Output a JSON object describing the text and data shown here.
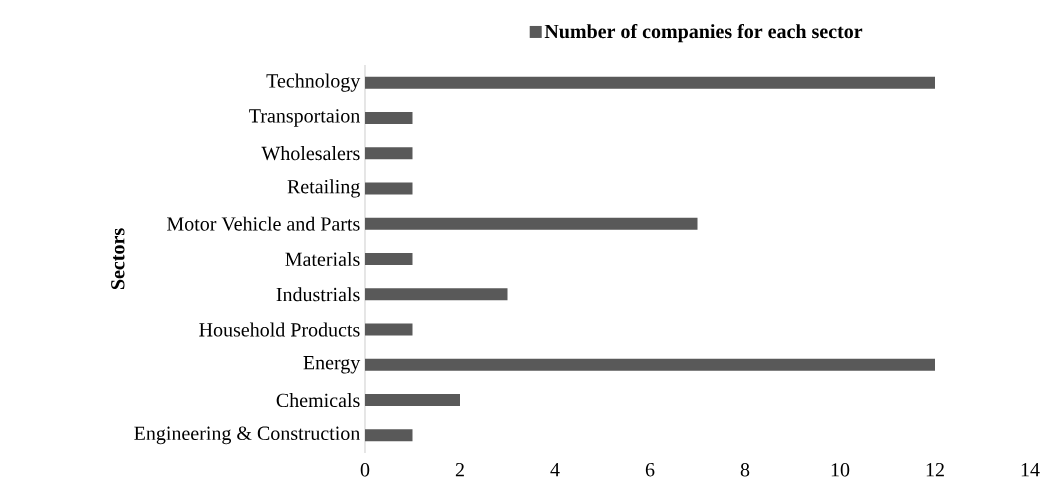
{
  "chart_data": {
    "type": "bar",
    "orientation": "horizontal",
    "ylabel": "Sectors",
    "legend": "top",
    "categories": [
      "Technology",
      "Transportaion",
      "Wholesalers",
      "Retailing",
      "Motor Vehicle and Parts",
      "Materials",
      "Industrials",
      "Household Products",
      "Energy",
      "Chemicals",
      "Engineering & Construction"
    ],
    "series": [
      {
        "name": "Number of companies for each sector",
        "color": "#595959",
        "values": [
          12,
          1,
          1,
          1,
          7,
          1,
          3,
          1,
          12,
          2,
          1
        ]
      }
    ],
    "xlim": [
      0,
      14
    ],
    "xticks": [
      0,
      2,
      4,
      6,
      8,
      10,
      12,
      14
    ]
  }
}
